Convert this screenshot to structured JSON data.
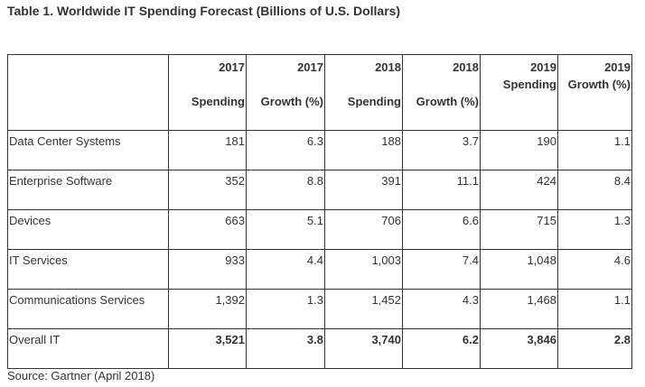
{
  "title": "Table 1. Worldwide IT Spending Forecast (Billions of U.S. Dollars)",
  "columns": [
    {
      "year": "2017",
      "metric": "Spending"
    },
    {
      "year": "2017",
      "metric": "Growth (%)"
    },
    {
      "year": "2018",
      "metric": "Spending"
    },
    {
      "year": "2018",
      "metric": "Growth (%)"
    },
    {
      "year": "2019",
      "metric": "Spending"
    },
    {
      "year": "2019",
      "metric": "Growth (%)"
    }
  ],
  "rows": [
    {
      "label": "Data Center Systems",
      "values": [
        "181",
        "6.3",
        "188",
        "3.7",
        "190",
        "1.1"
      ]
    },
    {
      "label": "Enterprise Software",
      "values": [
        "352",
        "8.8",
        "391",
        "11.1",
        "424",
        "8.4"
      ]
    },
    {
      "label": "Devices",
      "values": [
        "663",
        "5.1",
        "706",
        "6.6",
        "715",
        "1.3"
      ]
    },
    {
      "label": "IT Services",
      "values": [
        "933",
        "4.4",
        "1,003",
        "7.4",
        "1,048",
        "4.6"
      ]
    },
    {
      "label": "Communications Services",
      "values": [
        "1,392",
        "1.3",
        "1,452",
        "4.3",
        "1,468",
        "1.1"
      ]
    },
    {
      "label": "Overall IT",
      "values": [
        "3,521",
        "3.8",
        "3,740",
        "6.2",
        "3,846",
        "2.8"
      ]
    }
  ],
  "source": "Source: Gartner (April 2018)"
}
